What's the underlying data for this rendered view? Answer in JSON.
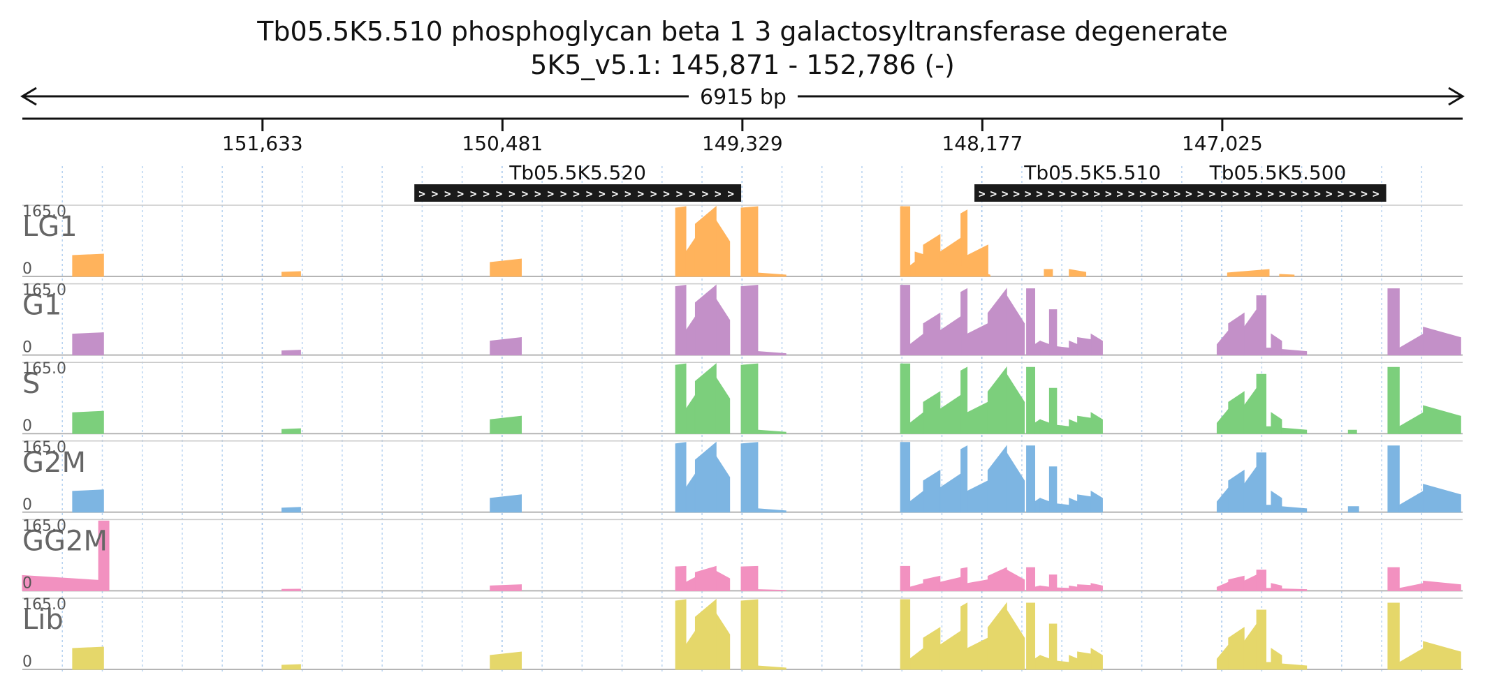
{
  "chart_data": {
    "type": "area",
    "title": "Tb05.5K5.510  phosphoglycan beta 1 3 galactosyltransferase  degenerate",
    "subtitle": "5K5_v5.1: 145,871 - 152,786 (-)",
    "span_label": "6915 bp",
    "region": {
      "start": 145871,
      "end": 152786,
      "strand": "-"
    },
    "x_reversed": true,
    "ticks": [
      {
        "pos": 151633,
        "label": "151,633"
      },
      {
        "pos": 150481,
        "label": "150,481"
      },
      {
        "pos": 149329,
        "label": "149,329"
      },
      {
        "pos": 148177,
        "label": "148,177"
      },
      {
        "pos": 147025,
        "label": "147,025"
      }
    ],
    "genes": [
      {
        "name": "Tb05.5K5.520",
        "start": 149335,
        "end": 150904,
        "arrows": "> > > > > > > > > > > > > > > > > > > > > > > > >"
      },
      {
        "name": "Tb05.5K5.510",
        "start": 147081,
        "end": 148215,
        "arrows": "> > > > > > > > > > > > > > > > > > > >"
      },
      {
        "name": "Tb05.5K5.500",
        "start": 146238,
        "end": 147278,
        "arrows": "> > > > > > > > > > > > > > > > > >"
      }
    ],
    "ylim": [
      0,
      165.0
    ],
    "y_max_label": "165.0",
    "y_min_label": "0",
    "x_unit": "bp",
    "shared_segments": [
      [
        152545,
        152396,
        0.3,
        0.32
      ],
      [
        151540,
        151450,
        0.06,
        0.07
      ],
      [
        150540,
        150390,
        0.2,
        0.25
      ],
      [
        149650,
        149600,
        0.98,
        1.0
      ],
      [
        149600,
        149555,
        0.35,
        0.55
      ],
      [
        149555,
        149455,
        0.75,
        1.0
      ],
      [
        149455,
        149390,
        0.8,
        0.5
      ],
      [
        149390,
        149335,
        0.0,
        0.0
      ],
      [
        149335,
        149255,
        0.98,
        1.0
      ],
      [
        149255,
        149120,
        0.05,
        0.02
      ],
      [
        148570,
        148525,
        1.0,
        1.0
      ],
      [
        148525,
        148460,
        0.15,
        0.3
      ],
      [
        148460,
        148380,
        0.45,
        0.6
      ],
      [
        148380,
        148280,
        0.35,
        0.55
      ],
      [
        148280,
        148250,
        0.9,
        0.95
      ],
      [
        148250,
        148150,
        0.3,
        0.45
      ],
      [
        148150,
        148060,
        0.6,
        0.95
      ],
      [
        148060,
        147975,
        0.85,
        0.45
      ],
      [
        147975,
        147965,
        0.0,
        0.0
      ],
      [
        147965,
        147925,
        0.95,
        0.95
      ],
      [
        147925,
        147900,
        0.15,
        0.2
      ],
      [
        147900,
        147855,
        0.2,
        0.15
      ],
      [
        147855,
        147820,
        0.65,
        0.65
      ],
      [
        147820,
        147760,
        0.12,
        0.1
      ],
      [
        147760,
        147720,
        0.2,
        0.15
      ],
      [
        147720,
        147655,
        0.25,
        0.22
      ],
      [
        147655,
        147600,
        0.3,
        0.2
      ],
      [
        147050,
        146995,
        0.15,
        0.35
      ],
      [
        146995,
        146920,
        0.45,
        0.6
      ],
      [
        146920,
        146860,
        0.4,
        0.65
      ],
      [
        146860,
        146815,
        0.85,
        0.85
      ],
      [
        146815,
        146790,
        0.1,
        0.1
      ],
      [
        146790,
        146740,
        0.3,
        0.2
      ],
      [
        146740,
        146620,
        0.08,
        0.05
      ],
      [
        146230,
        146175,
        0.95,
        0.95
      ],
      [
        146175,
        146060,
        0.1,
        0.3
      ],
      [
        146060,
        145880,
        0.4,
        0.25
      ]
    ],
    "series": [
      {
        "name": "LG1",
        "color": "#ffb35c",
        "scale": 1.0,
        "drop": [
          [
            148150,
            147600
          ],
          [
            147050,
            146620
          ],
          [
            146230,
            145880
          ]
        ],
        "extra": [
          [
            148500,
            148140,
            0.35,
            0.02
          ],
          [
            147880,
            147840,
            0.1,
            0.1
          ],
          [
            147760,
            147680,
            0.1,
            0.06
          ],
          [
            147000,
            146800,
            0.05,
            0.1
          ],
          [
            146750,
            146680,
            0.03,
            0.02
          ]
        ]
      },
      {
        "name": "G1",
        "color": "#c390c8",
        "scale": 1.0,
        "drop": [],
        "extra": []
      },
      {
        "name": "S",
        "color": "#7ccf7c",
        "scale": 1.0,
        "drop": [],
        "extra": [
          [
            146420,
            146380,
            0.05,
            0.05
          ]
        ]
      },
      {
        "name": "G2M",
        "color": "#7db5e2",
        "scale": 1.0,
        "drop": [],
        "extra": [
          [
            146420,
            146370,
            0.08,
            0.08
          ]
        ]
      },
      {
        "name": "GG2M",
        "color": "#f291c0",
        "scale": 0.35,
        "drop": [
          [
            152545,
            152396
          ]
        ],
        "extra": [
          [
            152786,
            152420,
            0.22,
            0.15
          ],
          [
            152420,
            152370,
            1.4,
            1.4
          ]
        ]
      },
      {
        "name": "Lib",
        "color": "#e5d76a",
        "scale": 1.0,
        "drop": [],
        "extra": []
      }
    ]
  }
}
